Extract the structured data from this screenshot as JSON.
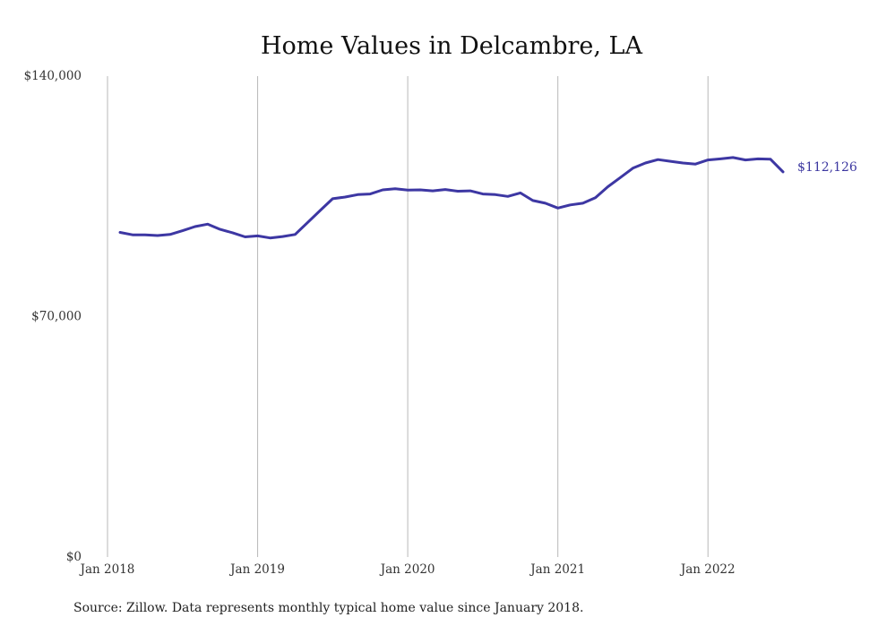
{
  "chart_data": {
    "type": "line",
    "title": "Home Values in Delcambre, LA",
    "source": "Source: Zillow. Data represents monthly typical home value since January 2018.",
    "y_ticks": [
      {
        "value": 0,
        "label": "$0"
      },
      {
        "value": 70000,
        "label": "$70,000"
      },
      {
        "value": 140000,
        "label": "$140,000"
      }
    ],
    "x_ticks": [
      {
        "value": "2018-01",
        "label": "Jan 2018"
      },
      {
        "value": "2019-01",
        "label": "Jan 2019"
      },
      {
        "value": "2020-01",
        "label": "Jan 2020"
      },
      {
        "value": "2021-01",
        "label": "Jan 2021"
      },
      {
        "value": "2022-01",
        "label": "Jan 2022"
      }
    ],
    "ylim": [
      0,
      140000
    ],
    "xlim": [
      "2018-01",
      "2022-07"
    ],
    "grid": "vertical",
    "end_label": "$112,126",
    "series": [
      {
        "color": "#3d37a3",
        "x": [
          "2018-02",
          "2018-03",
          "2018-04",
          "2018-05",
          "2018-06",
          "2018-07",
          "2018-08",
          "2018-09",
          "2018-10",
          "2018-11",
          "2018-12",
          "2019-01",
          "2019-02",
          "2019-03",
          "2019-04",
          "2019-05",
          "2019-06",
          "2019-07",
          "2019-08",
          "2019-09",
          "2019-10",
          "2019-11",
          "2019-12",
          "2020-01",
          "2020-02",
          "2020-03",
          "2020-04",
          "2020-05",
          "2020-06",
          "2020-07",
          "2020-08",
          "2020-09",
          "2020-10",
          "2020-11",
          "2020-12",
          "2021-01",
          "2021-02",
          "2021-03",
          "2021-04",
          "2021-05",
          "2021-06",
          "2021-07",
          "2021-08",
          "2021-09",
          "2021-10",
          "2021-11",
          "2021-12",
          "2022-01",
          "2022-02",
          "2022-03",
          "2022-04",
          "2022-05",
          "2022-06",
          "2022-07"
        ],
        "values": [
          94500,
          93800,
          93800,
          93600,
          93900,
          95000,
          96200,
          96900,
          95400,
          94400,
          93200,
          93500,
          92900,
          93300,
          93900,
          97400,
          100900,
          104300,
          104800,
          105500,
          105700,
          106900,
          107200,
          106800,
          106900,
          106600,
          107000,
          106500,
          106600,
          105700,
          105500,
          105000,
          106000,
          103800,
          103000,
          101600,
          102500,
          103000,
          104600,
          107800,
          110500,
          113200,
          114700,
          115700,
          115200,
          114700,
          114400,
          115600,
          115900,
          116300,
          115600,
          115900,
          115800,
          112126
        ]
      }
    ]
  }
}
